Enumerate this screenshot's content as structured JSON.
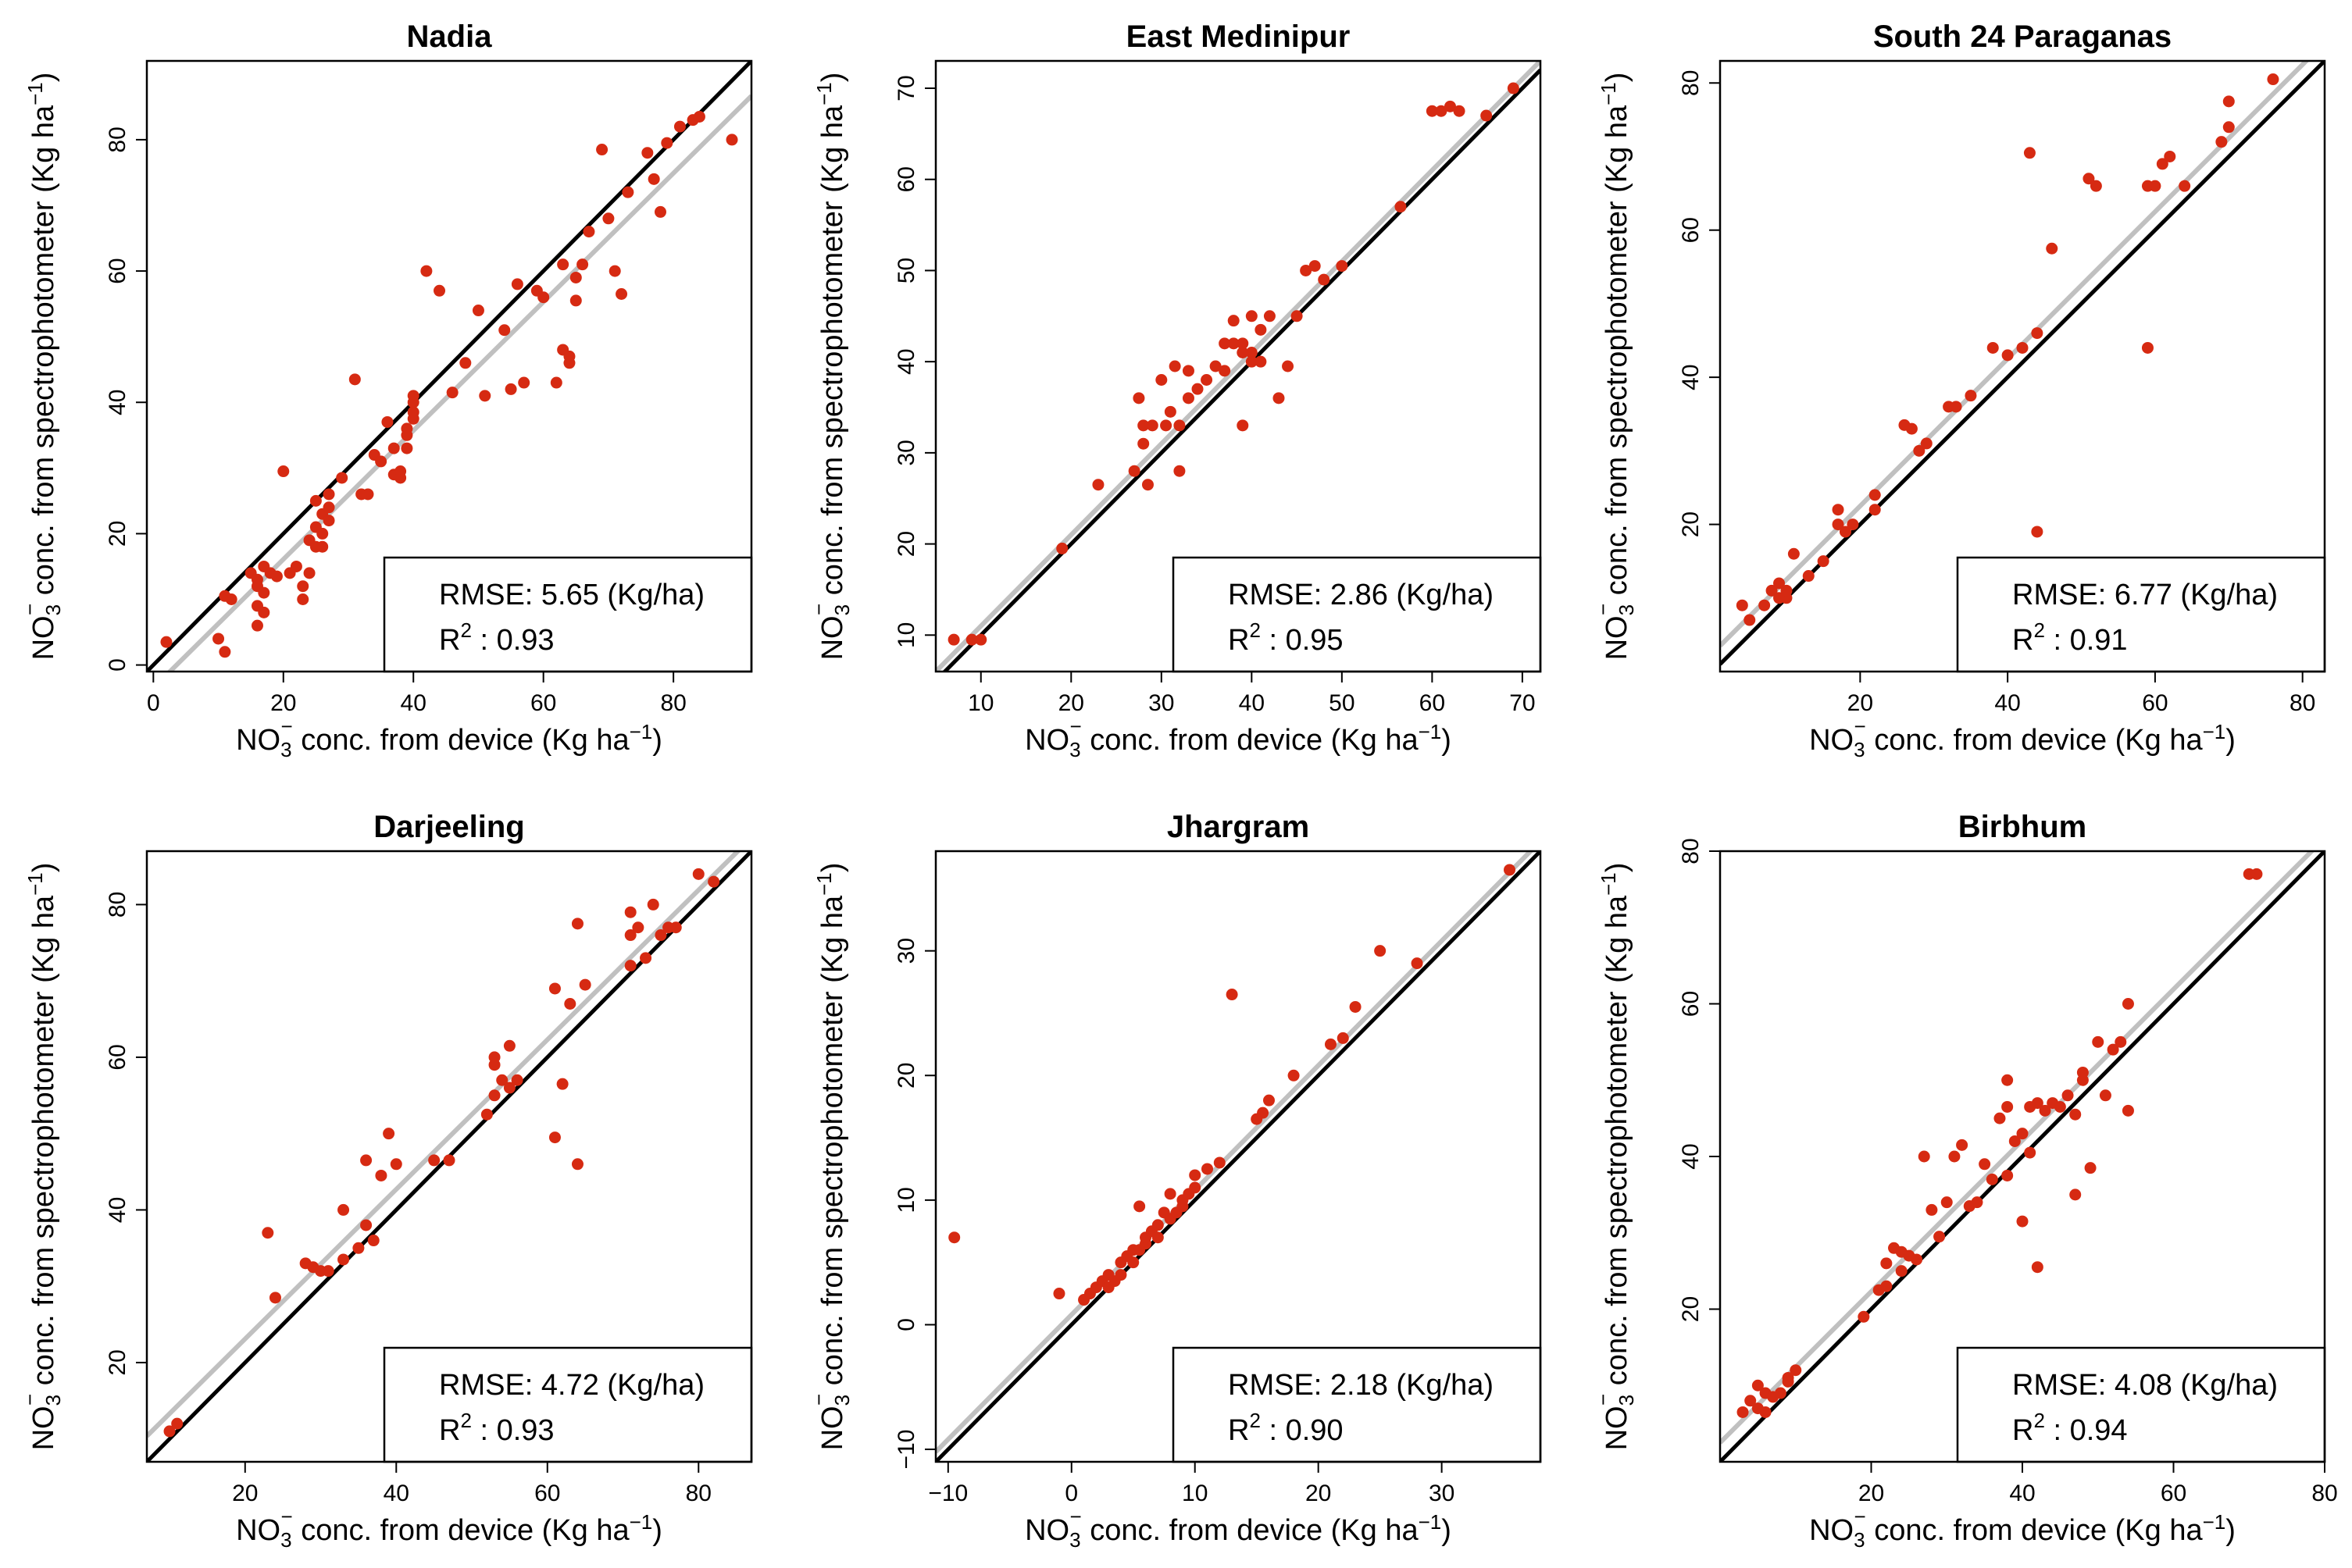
{
  "figure": {
    "colors": {
      "points": "#d62a12",
      "identity_line": "#000000",
      "fit_line": "#c0c0c0",
      "box_border": "#000000"
    },
    "panel_labels": {
      "ylabel_pre": "NO",
      "ylabel_sub": "3",
      "ylabel_sup": "−",
      "ylabel_mid": " conc. from spectrophotometer (Kg ha",
      "ylabel_exp": "−1",
      "ylabel_post": ")",
      "xlabel_pre": "NO",
      "xlabel_sub": "3",
      "xlabel_sup": "−",
      "xlabel_mid": " conc. from device (Kg ha",
      "xlabel_exp": "−1",
      "xlabel_post": ")",
      "rmse_prefix": "RMSE: ",
      "rmse_unit": " (Kg/ha)",
      "r2_base": "R",
      "r2_exp": "2",
      "r2_sep": " : "
    }
  },
  "chart_data": [
    {
      "type": "scatter",
      "title": "Nadia",
      "xlim": [
        -1,
        92
      ],
      "ylim": [
        -1,
        92
      ],
      "xticks": [
        0,
        20,
        40,
        60,
        80
      ],
      "yticks": [
        0,
        20,
        40,
        60,
        80
      ],
      "identity_line": true,
      "fit_line": {
        "slope": 0.98,
        "intercept": -3.5
      },
      "stats": {
        "rmse": "5.65",
        "r2": "0.93"
      },
      "points": [
        [
          2,
          3.5
        ],
        [
          10,
          4
        ],
        [
          11,
          2
        ],
        [
          11,
          10.5
        ],
        [
          12,
          10
        ],
        [
          15,
          14
        ],
        [
          16,
          13
        ],
        [
          16,
          6
        ],
        [
          16,
          9
        ],
        [
          16,
          12
        ],
        [
          17,
          8
        ],
        [
          17,
          11
        ],
        [
          17,
          15
        ],
        [
          18,
          14
        ],
        [
          19,
          13.5
        ],
        [
          20,
          29.5
        ],
        [
          21,
          14
        ],
        [
          22,
          15
        ],
        [
          23,
          10
        ],
        [
          23,
          12
        ],
        [
          24,
          14
        ],
        [
          24,
          19
        ],
        [
          25,
          18
        ],
        [
          25,
          21
        ],
        [
          25,
          25
        ],
        [
          26,
          18
        ],
        [
          26,
          20
        ],
        [
          26,
          23
        ],
        [
          27,
          22
        ],
        [
          27,
          26
        ],
        [
          27,
          24
        ],
        [
          29,
          28.5
        ],
        [
          31,
          43.5
        ],
        [
          32,
          26
        ],
        [
          33,
          26
        ],
        [
          34,
          32
        ],
        [
          35,
          31
        ],
        [
          36,
          37
        ],
        [
          37,
          33
        ],
        [
          37,
          29
        ],
        [
          38,
          28.5
        ],
        [
          38,
          29.5
        ],
        [
          39,
          33
        ],
        [
          39,
          35
        ],
        [
          39,
          36
        ],
        [
          40,
          37.5
        ],
        [
          40,
          38.5
        ],
        [
          40,
          40
        ],
        [
          40,
          41
        ],
        [
          42,
          60
        ],
        [
          44,
          57
        ],
        [
          46,
          41.5
        ],
        [
          48,
          46
        ],
        [
          50,
          54
        ],
        [
          51,
          41
        ],
        [
          54,
          51
        ],
        [
          55,
          42
        ],
        [
          56,
          58
        ],
        [
          57,
          43
        ],
        [
          59,
          57
        ],
        [
          60,
          56
        ],
        [
          62,
          43
        ],
        [
          63,
          61
        ],
        [
          63,
          48
        ],
        [
          64,
          46
        ],
        [
          64,
          47
        ],
        [
          65,
          59
        ],
        [
          65,
          55.5
        ],
        [
          66,
          61
        ],
        [
          67,
          66
        ],
        [
          69,
          78.5
        ],
        [
          70,
          68
        ],
        [
          71,
          60
        ],
        [
          72,
          56.5
        ],
        [
          73,
          72
        ],
        [
          76,
          78
        ],
        [
          77,
          74
        ],
        [
          78,
          69
        ],
        [
          79,
          79.5
        ],
        [
          81,
          82
        ],
        [
          83,
          83
        ],
        [
          84,
          83.5
        ],
        [
          89,
          80
        ]
      ]
    },
    {
      "type": "scatter",
      "title": "East Medinipur",
      "xlim": [
        5,
        72
      ],
      "ylim": [
        6,
        73
      ],
      "xticks": [
        10,
        20,
        30,
        40,
        50,
        60,
        70
      ],
      "yticks": [
        10,
        20,
        30,
        40,
        50,
        60,
        70
      ],
      "identity_line": true,
      "fit_line": {
        "slope": 1.0,
        "intercept": 1.0
      },
      "stats": {
        "rmse": "2.86",
        "r2": "0.95"
      },
      "points": [
        [
          7,
          9.5
        ],
        [
          9,
          9.5
        ],
        [
          10,
          9.5
        ],
        [
          19,
          19.5
        ],
        [
          23,
          26.5
        ],
        [
          27,
          28
        ],
        [
          27.5,
          36
        ],
        [
          28,
          33
        ],
        [
          28,
          31
        ],
        [
          28.5,
          26.5
        ],
        [
          29,
          33
        ],
        [
          30,
          38
        ],
        [
          30.5,
          33
        ],
        [
          31,
          34.5
        ],
        [
          31.5,
          39.5
        ],
        [
          32,
          33
        ],
        [
          32,
          28
        ],
        [
          33,
          36
        ],
        [
          33,
          39
        ],
        [
          34,
          37
        ],
        [
          35,
          38
        ],
        [
          36,
          39.5
        ],
        [
          37,
          42
        ],
        [
          37,
          39
        ],
        [
          38,
          42
        ],
        [
          38,
          44.5
        ],
        [
          39,
          33
        ],
        [
          39,
          41
        ],
        [
          39,
          42
        ],
        [
          40,
          40
        ],
        [
          40,
          41
        ],
        [
          40,
          45
        ],
        [
          41,
          40
        ],
        [
          41,
          43.5
        ],
        [
          42,
          45
        ],
        [
          43,
          36
        ],
        [
          44,
          39.5
        ],
        [
          45,
          45
        ],
        [
          46,
          50
        ],
        [
          47,
          50.5
        ],
        [
          48,
          49
        ],
        [
          50,
          50.5
        ],
        [
          56.5,
          57
        ],
        [
          60,
          67.5
        ],
        [
          61,
          67.5
        ],
        [
          62,
          68
        ],
        [
          63,
          67.5
        ],
        [
          66,
          67
        ],
        [
          69,
          70
        ]
      ]
    },
    {
      "type": "scatter",
      "title": "South 24 Paraganas",
      "xlim": [
        1,
        83
      ],
      "ylim": [
        0,
        83
      ],
      "xticks": [
        20,
        40,
        60,
        80
      ],
      "yticks": [
        20,
        40,
        60,
        80
      ],
      "identity_line": true,
      "fit_line": {
        "slope": 1.0,
        "intercept": 2.5
      },
      "stats": {
        "rmse": "6.77",
        "r2": "0.91"
      },
      "points": [
        [
          4,
          9
        ],
        [
          5,
          7
        ],
        [
          7,
          9
        ],
        [
          8,
          11
        ],
        [
          9,
          10
        ],
        [
          9,
          12
        ],
        [
          10,
          10
        ],
        [
          10,
          11
        ],
        [
          11,
          16
        ],
        [
          13,
          13
        ],
        [
          15,
          15
        ],
        [
          17,
          22
        ],
        [
          17,
          20
        ],
        [
          18,
          19
        ],
        [
          19,
          20
        ],
        [
          22,
          24
        ],
        [
          22,
          22
        ],
        [
          26,
          33.5
        ],
        [
          27,
          33
        ],
        [
          28,
          30
        ],
        [
          29,
          31
        ],
        [
          32,
          36
        ],
        [
          33,
          36
        ],
        [
          35,
          37.5
        ],
        [
          38,
          44
        ],
        [
          40,
          43
        ],
        [
          42,
          44
        ],
        [
          43,
          70.5
        ],
        [
          44,
          46
        ],
        [
          44,
          19
        ],
        [
          46,
          57.5
        ],
        [
          51,
          67
        ],
        [
          52,
          66
        ],
        [
          59,
          44
        ],
        [
          59,
          66
        ],
        [
          60,
          66
        ],
        [
          61,
          69
        ],
        [
          62,
          70
        ],
        [
          64,
          66
        ],
        [
          69,
          72
        ],
        [
          70,
          74
        ],
        [
          70,
          77.5
        ],
        [
          76,
          80.5
        ]
      ]
    },
    {
      "type": "scatter",
      "title": "Darjeeling",
      "xlim": [
        7,
        87
      ],
      "ylim": [
        7,
        87
      ],
      "xticks": [
        20,
        40,
        60,
        80
      ],
      "yticks": [
        20,
        40,
        60,
        80
      ],
      "identity_line": true,
      "fit_line": {
        "slope": 0.98,
        "intercept": 3.5
      },
      "stats": {
        "rmse": "4.72",
        "r2": "0.93"
      },
      "points": [
        [
          10,
          11
        ],
        [
          11,
          12
        ],
        [
          23,
          37
        ],
        [
          24,
          28.5
        ],
        [
          28,
          33
        ],
        [
          29,
          32.5
        ],
        [
          30,
          32
        ],
        [
          31,
          32
        ],
        [
          33,
          33.5
        ],
        [
          33,
          40
        ],
        [
          35,
          35
        ],
        [
          36,
          38
        ],
        [
          36,
          46.5
        ],
        [
          37,
          36
        ],
        [
          38,
          44.5
        ],
        [
          39,
          50
        ],
        [
          40,
          46
        ],
        [
          45,
          46.5
        ],
        [
          47,
          46.5
        ],
        [
          52,
          52.5
        ],
        [
          53,
          55
        ],
        [
          53,
          59
        ],
        [
          53,
          60
        ],
        [
          54,
          57
        ],
        [
          55,
          56
        ],
        [
          55,
          61.5
        ],
        [
          56,
          57
        ],
        [
          61,
          49.5
        ],
        [
          61,
          69
        ],
        [
          62,
          56.5
        ],
        [
          63,
          67
        ],
        [
          64,
          77.5
        ],
        [
          64,
          46
        ],
        [
          65,
          69.5
        ],
        [
          71,
          72
        ],
        [
          71,
          76
        ],
        [
          71,
          79
        ],
        [
          72,
          77
        ],
        [
          73,
          73
        ],
        [
          74,
          80
        ],
        [
          75,
          76
        ],
        [
          76,
          77
        ],
        [
          77,
          77
        ],
        [
          80,
          84
        ],
        [
          82,
          83
        ]
      ]
    },
    {
      "type": "scatter",
      "title": "Jhargram",
      "xlim": [
        -11,
        38
      ],
      "ylim": [
        -11,
        38
      ],
      "xticks": [
        -10,
        0,
        10,
        20,
        30
      ],
      "yticks": [
        -10,
        0,
        10,
        20,
        30
      ],
      "identity_line": true,
      "fit_line": {
        "slope": 1.0,
        "intercept": 0.8
      },
      "stats": {
        "rmse": "2.18",
        "r2": "0.90"
      },
      "points": [
        [
          -9.5,
          7
        ],
        [
          -1,
          2.5
        ],
        [
          1,
          2
        ],
        [
          1.5,
          2.5
        ],
        [
          2,
          3
        ],
        [
          2.5,
          3.5
        ],
        [
          3,
          4
        ],
        [
          3,
          3
        ],
        [
          3.5,
          3.5
        ],
        [
          4,
          4
        ],
        [
          4,
          5
        ],
        [
          4.5,
          5.5
        ],
        [
          5,
          6
        ],
        [
          5,
          5
        ],
        [
          5.5,
          9.5
        ],
        [
          5.5,
          6
        ],
        [
          6,
          6.5
        ],
        [
          6,
          7
        ],
        [
          6.5,
          7.5
        ],
        [
          7,
          8
        ],
        [
          7,
          7
        ],
        [
          7.5,
          9
        ],
        [
          8,
          10.5
        ],
        [
          8,
          8.5
        ],
        [
          8.5,
          9
        ],
        [
          9,
          10
        ],
        [
          9,
          9.5
        ],
        [
          9.5,
          10.5
        ],
        [
          10,
          11
        ],
        [
          10,
          12
        ],
        [
          11,
          12.5
        ],
        [
          12,
          13
        ],
        [
          13,
          26.5
        ],
        [
          15,
          16.5
        ],
        [
          15.5,
          17
        ],
        [
          16,
          18
        ],
        [
          18,
          20
        ],
        [
          21,
          22.5
        ],
        [
          22,
          23
        ],
        [
          23,
          25.5
        ],
        [
          25,
          30
        ],
        [
          28,
          29
        ],
        [
          35.5,
          36.5
        ]
      ]
    },
    {
      "type": "scatter",
      "title": "Birbhum",
      "xlim": [
        0,
        80
      ],
      "ylim": [
        0,
        80
      ],
      "xticks": [
        20,
        40,
        60,
        80
      ],
      "yticks": [
        20,
        40,
        60,
        80
      ],
      "identity_line": true,
      "fit_line": {
        "slope": 0.99,
        "intercept": 2.5
      },
      "stats": {
        "rmse": "4.08",
        "r2": "0.94"
      },
      "points": [
        [
          3,
          6.5
        ],
        [
          4,
          8
        ],
        [
          5,
          10
        ],
        [
          5,
          7
        ],
        [
          6,
          6.5
        ],
        [
          6,
          9
        ],
        [
          7,
          8.5
        ],
        [
          8,
          9
        ],
        [
          9,
          11
        ],
        [
          9,
          10.5
        ],
        [
          10,
          12
        ],
        [
          19,
          19
        ],
        [
          21,
          22.5
        ],
        [
          22,
          23
        ],
        [
          22,
          26
        ],
        [
          23,
          28
        ],
        [
          24,
          25
        ],
        [
          24,
          27.5
        ],
        [
          25,
          27
        ],
        [
          26,
          26.5
        ],
        [
          27,
          40
        ],
        [
          28,
          33
        ],
        [
          29,
          29.5
        ],
        [
          30,
          34
        ],
        [
          31,
          40
        ],
        [
          32,
          41.5
        ],
        [
          33,
          33.5
        ],
        [
          34,
          34
        ],
        [
          35,
          39
        ],
        [
          36,
          37
        ],
        [
          37,
          45
        ],
        [
          38,
          37.5
        ],
        [
          38,
          46.5
        ],
        [
          38,
          50
        ],
        [
          39,
          42
        ],
        [
          40,
          31.5
        ],
        [
          40,
          43
        ],
        [
          41,
          40.5
        ],
        [
          41,
          46.5
        ],
        [
          42,
          47
        ],
        [
          42,
          25.5
        ],
        [
          43,
          46
        ],
        [
          44,
          47
        ],
        [
          45,
          46.5
        ],
        [
          46,
          48
        ],
        [
          47,
          35
        ],
        [
          47,
          45.5
        ],
        [
          48,
          50
        ],
        [
          48,
          51
        ],
        [
          49,
          38.5
        ],
        [
          50,
          55
        ],
        [
          51,
          48
        ],
        [
          52,
          54
        ],
        [
          53,
          55
        ],
        [
          54,
          60
        ],
        [
          54,
          46
        ],
        [
          70,
          77
        ],
        [
          71,
          77
        ]
      ]
    }
  ]
}
